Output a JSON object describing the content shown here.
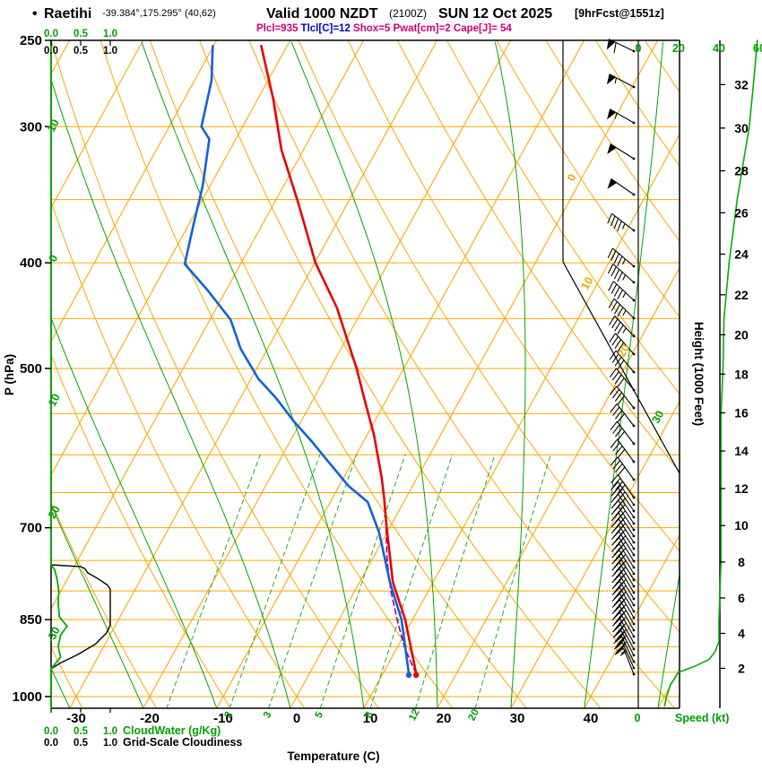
{
  "header": {
    "bullet": "•",
    "station": "Raetihi",
    "coords": "-39.384°,175.295° (40,62)",
    "valid": "Valid 1000 NZDT",
    "valid_z": "(2100Z)",
    "date": "SUN 12 Oct 2025",
    "fcst": "[9hrFcst@1551z]",
    "indices": [
      {
        "text": "Plcl=935",
        "color": "#cc0077"
      },
      {
        "text": "Tlcl[C]=12",
        "color": "#0000cc"
      },
      {
        "text": "Shox=5",
        "color": "#cc0077"
      },
      {
        "text": "Pwat[cm]=2",
        "color": "#cc0077"
      },
      {
        "text": "Cape[J]= 54",
        "color": "#cc0077"
      }
    ]
  },
  "axes": {
    "pressure_label": "P (hPa)",
    "pressure_ticks": [
      250,
      300,
      400,
      500,
      700,
      850,
      1000
    ],
    "temp_label": "Temperature (C)",
    "temp_ticks": [
      -30,
      -20,
      -10,
      0,
      10,
      20,
      30,
      40
    ],
    "height_label": "Height (1000 Feet)",
    "height_ticks": [
      2,
      4,
      6,
      8,
      10,
      12,
      14,
      16,
      18,
      20,
      22,
      24,
      26,
      28,
      30,
      32
    ],
    "speed_label": "Speed (kt)",
    "speed_ticks": [
      0,
      20,
      40,
      60
    ],
    "speed_zero_bottom": "0",
    "cloudwater_label": "CloudWater (g/Kg)",
    "cloudiness_label": "Grid-Scale Cloudiness",
    "cloud_scale_ticks": [
      "0.0",
      "0.5",
      "1.0"
    ],
    "isotherm_inline_labels": [
      0,
      10,
      20
    ],
    "moist_inline_label": 30,
    "left_green_labels": [
      10,
      0,
      -10,
      -20,
      -30
    ],
    "mixing_ratio_labels": [
      2,
      3,
      5,
      8,
      12,
      20
    ]
  },
  "colors": {
    "grid_orange": "#ffa600",
    "moist_green": "#00a600",
    "mixing_green": "#2aa82a",
    "temperature_red": "#e80000",
    "dewpoint_blue": "#1060e0",
    "parcel_purple": "#990099",
    "profile_green": "#00b000",
    "cloudiness_black": "#000000"
  },
  "chart_data": {
    "type": "line",
    "subtype": "skew-t log-p sounding",
    "title": "Raetihi -39.384,175.295 (40,62) Valid 1000 NZDT (2100Z) SUN 12 Oct 2025 [9hrFcst@1551z]",
    "pressure_axis": {
      "label": "P (hPa)",
      "scale": "log",
      "top_hPa": 250,
      "bottom_hPa": 1025,
      "ticks": [
        250,
        300,
        400,
        500,
        700,
        850,
        1000
      ]
    },
    "temperature_axis": {
      "label": "Temperature (C)",
      "ticks": [
        -30,
        -20,
        -10,
        0,
        10,
        20,
        30,
        40
      ],
      "skewed": true
    },
    "height_axis": {
      "label": "Height (1000 Feet)",
      "ticks": [
        2,
        4,
        6,
        8,
        10,
        12,
        14,
        16,
        18,
        20,
        22,
        24,
        26,
        28,
        30,
        32
      ]
    },
    "indices": {
      "Plcl": 935,
      "Tlcl_C": 12,
      "Shox": 5,
      "Pwat_cm": 2,
      "Cape_J": 54
    },
    "mixing_ratio_lines_g_kg": [
      1,
      2,
      3,
      5,
      8,
      12,
      20
    ],
    "series": [
      {
        "name": "temperature",
        "units": [
          "hPa",
          "C"
        ],
        "points": [
          [
            952,
            14.5
          ],
          [
            850,
            9.0
          ],
          [
            785,
            4.5
          ],
          [
            700,
            -0.4
          ],
          [
            660,
            -2.8
          ],
          [
            630,
            -4.8
          ],
          [
            575,
            -9.1
          ],
          [
            532,
            -13.2
          ],
          [
            500,
            -16.4
          ],
          [
            440,
            -23.6
          ],
          [
            400,
            -29.9
          ],
          [
            352,
            -36.8
          ],
          [
            315,
            -43.0
          ],
          [
            283,
            -47.9
          ],
          [
            253,
            -53.5
          ]
        ]
      },
      {
        "name": "dewpoint",
        "units": [
          "hPa",
          "C"
        ],
        "points": [
          [
            952,
            13.5
          ],
          [
            850,
            8.5
          ],
          [
            785,
            4.1
          ],
          [
            708,
            -1.0
          ],
          [
            663,
            -4.9
          ],
          [
            641,
            -8.7
          ],
          [
            608,
            -13.4
          ],
          [
            583,
            -17.1
          ],
          [
            559,
            -21.0
          ],
          [
            532,
            -25.2
          ],
          [
            511,
            -29.0
          ],
          [
            480,
            -33.6
          ],
          [
            451,
            -37.2
          ],
          [
            424,
            -42.5
          ],
          [
            401,
            -47.6
          ],
          [
            368,
            -49.4
          ],
          [
            340,
            -51.0
          ],
          [
            308,
            -53.6
          ],
          [
            300,
            -55.6
          ],
          [
            272,
            -57.7
          ],
          [
            253,
            -60.1
          ]
        ]
      },
      {
        "name": "parcel",
        "units": [
          "hPa",
          "C"
        ],
        "points": [
          [
            952,
            14.5
          ],
          [
            935,
            13.3
          ],
          [
            900,
            10.9
          ],
          [
            850,
            7.9
          ],
          [
            800,
            4.9
          ],
          [
            750,
            2.1
          ],
          [
            700,
            -0.5
          ]
        ]
      },
      {
        "name": "grid_scale_cloudiness",
        "units": [
          "hPa",
          "fraction"
        ],
        "points": [
          [
            757,
            0
          ],
          [
            760,
            0.5
          ],
          [
            763,
            0.57
          ],
          [
            770,
            0.62
          ],
          [
            780,
            0.8
          ],
          [
            790,
            0.95
          ],
          [
            797,
            1.0
          ],
          [
            860,
            1.0
          ],
          [
            875,
            0.93
          ],
          [
            895,
            0.75
          ],
          [
            915,
            0.45
          ],
          [
            932,
            0.15
          ],
          [
            943,
            0
          ]
        ]
      },
      {
        "name": "cloud_water",
        "units": [
          "hPa",
          "g/kg"
        ],
        "points": [
          [
            757,
            0
          ],
          [
            765,
            0.06
          ],
          [
            780,
            0.1
          ],
          [
            800,
            0.13
          ],
          [
            820,
            0.12
          ],
          [
            845,
            0.14
          ],
          [
            862,
            0.27
          ],
          [
            878,
            0.16
          ],
          [
            900,
            0.12
          ],
          [
            920,
            0.16
          ],
          [
            933,
            0.07
          ],
          [
            943,
            0
          ]
        ]
      },
      {
        "name": "wind_speed",
        "units": [
          "hPa",
          "kt"
        ],
        "points": [
          [
            1020,
            13
          ],
          [
            1000,
            14
          ],
          [
            975,
            16
          ],
          [
            950,
            20
          ],
          [
            938,
            28
          ],
          [
            925,
            35
          ],
          [
            910,
            38
          ],
          [
            890,
            40
          ],
          [
            850,
            40
          ],
          [
            750,
            41
          ],
          [
            650,
            41
          ],
          [
            550,
            41
          ],
          [
            500,
            42
          ],
          [
            450,
            42.5
          ],
          [
            400,
            45
          ],
          [
            350,
            49
          ],
          [
            300,
            55
          ],
          [
            275,
            57
          ],
          [
            250,
            59
          ]
        ]
      }
    ],
    "wind_barbs": [
      {
        "p": 970,
        "kt": 14,
        "dir": 340
      },
      {
        "p": 950,
        "kt": 18,
        "dir": 338
      },
      {
        "p": 935,
        "kt": 28,
        "dir": 335
      },
      {
        "p": 915,
        "kt": 36,
        "dir": 333
      },
      {
        "p": 890,
        "kt": 40,
        "dir": 330
      },
      {
        "p": 850,
        "kt": 40,
        "dir": 330
      },
      {
        "p": 750,
        "kt": 41,
        "dir": 328
      },
      {
        "p": 650,
        "kt": 41,
        "dir": 325
      },
      {
        "p": 550,
        "kt": 41,
        "dir": 322
      },
      {
        "p": 500,
        "kt": 42,
        "dir": 320
      },
      {
        "p": 450,
        "kt": 43,
        "dir": 315
      },
      {
        "p": 400,
        "kt": 45,
        "dir": 310
      },
      {
        "p": 350,
        "kt": 49,
        "dir": 305
      },
      {
        "p": 300,
        "kt": 55,
        "dir": 300
      },
      {
        "p": 250,
        "kt": 59,
        "dir": 295
      }
    ]
  }
}
